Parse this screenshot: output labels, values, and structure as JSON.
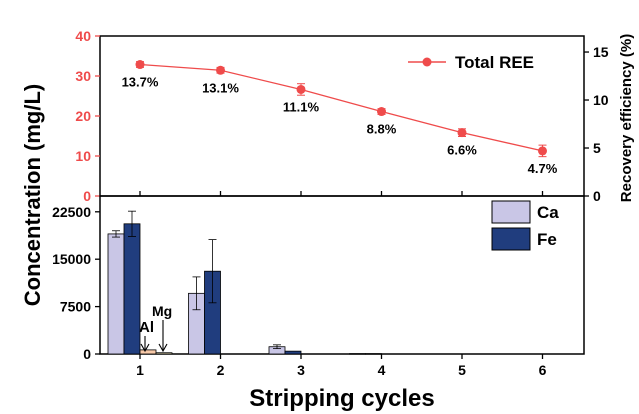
{
  "chart_data": [
    {
      "type": "line",
      "panel": "top",
      "x": [
        "1",
        "2",
        "3",
        "4",
        "5",
        "6"
      ],
      "series": [
        {
          "name": "Total REE",
          "color": "#ef4b4b",
          "values": [
            13.7,
            13.1,
            11.1,
            8.8,
            6.6,
            4.7
          ],
          "errors": [
            0.3,
            0.3,
            0.6,
            0.3,
            0.4,
            0.6
          ],
          "labels": [
            "13.7%",
            "13.1%",
            "11.1%",
            "8.8%",
            "6.6%",
            "4.7%"
          ]
        }
      ],
      "y_left": {
        "label": "Concentration (mg/L)",
        "ticks": [
          "0",
          "10",
          "20",
          "30",
          "40"
        ],
        "range": [
          0,
          40
        ],
        "color": "#ef4b4b"
      },
      "y_right": {
        "label": "Recovery efficiency (%)",
        "ticks": [
          "0",
          "5",
          "10",
          "15"
        ],
        "range": [
          0,
          16.67
        ]
      },
      "legend_position": "top-right"
    },
    {
      "type": "bar",
      "panel": "bottom",
      "categories": [
        "1",
        "2",
        "3",
        "4",
        "5",
        "6"
      ],
      "series": [
        {
          "name": "Ca",
          "color": "#c9c6e6",
          "values": [
            19000,
            9600,
            1150,
            60,
            0,
            0
          ],
          "errors": [
            500,
            2600,
            300,
            0,
            0,
            0
          ]
        },
        {
          "name": "Fe",
          "color": "#203d7e",
          "values": [
            20600,
            13100,
            450,
            60,
            0,
            0
          ],
          "errors": [
            2000,
            5000,
            0,
            0,
            0,
            0
          ]
        },
        {
          "name": "Al",
          "color": "#f7c9a8",
          "values": [
            650,
            0,
            0,
            0,
            0,
            0
          ],
          "errors": [
            0,
            0,
            0,
            0,
            0,
            0
          ]
        },
        {
          "name": "Mg",
          "color": "#f0e6b8",
          "values": [
            200,
            0,
            0,
            0,
            0,
            0
          ],
          "errors": [
            0,
            0,
            0,
            0,
            0,
            0
          ]
        }
      ],
      "y": {
        "ticks": [
          "0",
          "7500",
          "15000",
          "22500"
        ],
        "range": [
          0,
          25000
        ]
      },
      "xlabel": "Stripping cycles",
      "annotations": [
        "Al",
        "Mg"
      ],
      "legend_position": "top-right"
    }
  ]
}
